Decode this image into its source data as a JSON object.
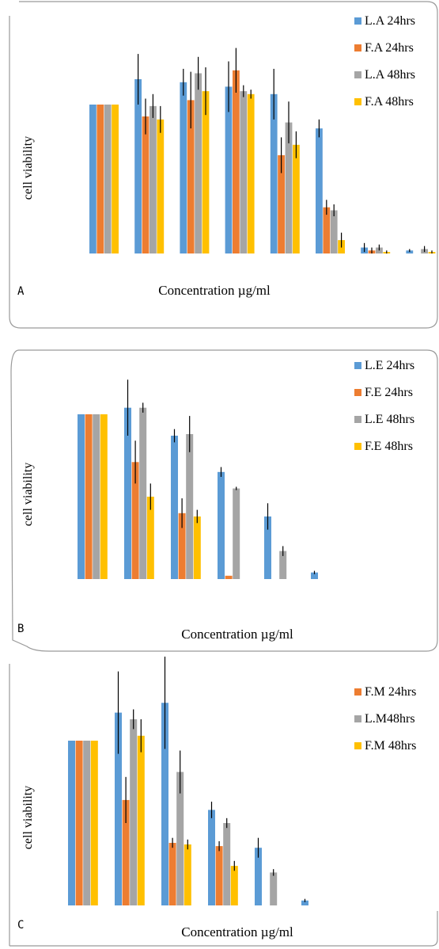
{
  "chart_data": [
    {
      "type": "bar",
      "panel": "A",
      "xlabel": "Concentration µg/ml",
      "ylabel": "cell viability",
      "ylim": [
        0,
        130
      ],
      "groups": 8,
      "series": [
        {
          "name": "L.A 24hrs",
          "color": "#5B9BD5",
          "values": [
            100,
            117,
            115,
            112,
            107,
            84,
            4,
            2
          ],
          "errors": [
            0,
            17,
            9,
            17,
            17,
            6,
            3,
            1
          ]
        },
        {
          "name": "F.A 24hrs",
          "color": "#ED7D31",
          "values": [
            100,
            92,
            103,
            123,
            66,
            31,
            2,
            0
          ],
          "errors": [
            0,
            12,
            19,
            15,
            12,
            5,
            2,
            0
          ]
        },
        {
          "name": "L.A 48hrs",
          "color": "#A5A5A5",
          "values": [
            100,
            99,
            121,
            109,
            88,
            29,
            4,
            3
          ],
          "errors": [
            0,
            8,
            11,
            4,
            14,
            4,
            2,
            2
          ]
        },
        {
          "name": "F.A 48hrs",
          "color": "#FFC000",
          "values": [
            100,
            90,
            109,
            107,
            73,
            9,
            1,
            1
          ],
          "errors": [
            0,
            9,
            16,
            3,
            9,
            5,
            1,
            1
          ]
        }
      ]
    },
    {
      "type": "bar",
      "panel": "B",
      "xlabel": "Concentration µg/ml",
      "ylabel": "cell viability",
      "ylim": [
        0,
        130
      ],
      "groups": 6,
      "series": [
        {
          "name": "L.E 24hrs",
          "color": "#5B9BD5",
          "values": [
            100,
            104,
            87,
            65,
            38,
            4
          ],
          "errors": [
            0,
            17,
            4,
            3,
            8,
            1
          ]
        },
        {
          "name": "F.E 24hrs",
          "color": "#ED7D31",
          "values": [
            100,
            71,
            40,
            2,
            0,
            0
          ],
          "errors": [
            0,
            13,
            9,
            0,
            0,
            0
          ]
        },
        {
          "name": "L.E 48hrs",
          "color": "#A5A5A5",
          "values": [
            100,
            104,
            88,
            55,
            17,
            0
          ],
          "errors": [
            0,
            3,
            11,
            1,
            3,
            0
          ]
        },
        {
          "name": "F.E 48hrs",
          "color": "#FFC000",
          "values": [
            100,
            50,
            38,
            0,
            0,
            0
          ],
          "errors": [
            0,
            8,
            4,
            0,
            0,
            0
          ]
        }
      ]
    },
    {
      "type": "bar",
      "panel": "C",
      "xlabel": "Concentration µg/ml",
      "ylabel": "cell viability",
      "ylim": [
        0,
        130
      ],
      "groups": 6,
      "series": [
        {
          "name": "",
          "color": "#5B9BD5",
          "values": [
            100,
            117,
            123,
            58,
            35,
            3
          ],
          "errors": [
            0,
            25,
            28,
            5,
            6,
            1
          ]
        },
        {
          "name": "F.M 24hrs",
          "color": "#ED7D31",
          "values": [
            100,
            64,
            38,
            36,
            0,
            0
          ],
          "errors": [
            0,
            14,
            3,
            3,
            0,
            0
          ]
        },
        {
          "name": "L.M48hrs",
          "color": "#A5A5A5",
          "values": [
            100,
            113,
            81,
            50,
            20,
            0
          ],
          "errors": [
            0,
            6,
            13,
            3,
            2,
            0
          ]
        },
        {
          "name": "F.M 48hrs",
          "color": "#FFC000",
          "values": [
            100,
            103,
            37,
            24,
            0,
            0
          ],
          "errors": [
            0,
            10,
            3,
            3,
            0,
            0
          ]
        }
      ]
    }
  ],
  "panels": [
    {
      "letter": "A"
    },
    {
      "letter": "B"
    },
    {
      "letter": "C"
    }
  ]
}
